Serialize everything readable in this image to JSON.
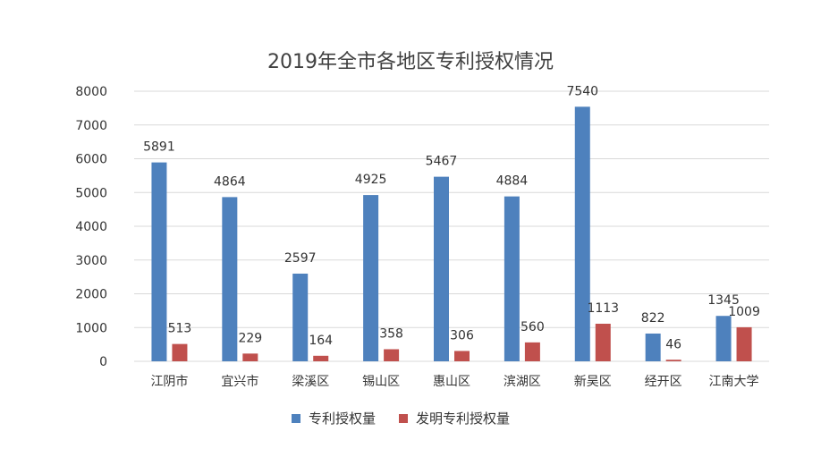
{
  "chart_data": {
    "type": "bar",
    "title": "2019年全市各地区专利授权情况",
    "xlabel": "",
    "ylabel": "",
    "categories": [
      "江阴市",
      "宜兴市",
      "梁溪区",
      "锡山区",
      "惠山区",
      "滨湖区",
      "新吴区",
      "经开区",
      "江南大学"
    ],
    "series": [
      {
        "name": "专利授权量",
        "color": "#4e81bd",
        "values": [
          5891,
          4864,
          2597,
          4925,
          5467,
          4884,
          7540,
          822,
          1345
        ]
      },
      {
        "name": "发明专利授权量",
        "color": "#c0504d",
        "values": [
          513,
          229,
          164,
          358,
          306,
          560,
          1113,
          46,
          1009
        ]
      }
    ],
    "ylim": [
      0,
      8000
    ],
    "yticks": [
      0,
      1000,
      2000,
      3000,
      4000,
      5000,
      6000,
      7000,
      8000
    ],
    "grid": true,
    "gridColor": "#d9d9d9",
    "legend": "bottom"
  }
}
